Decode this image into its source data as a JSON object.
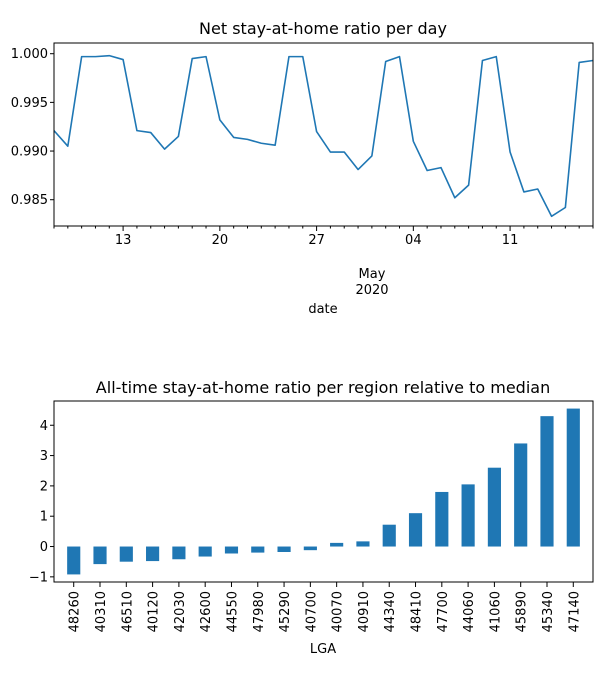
{
  "chart_data": [
    {
      "type": "line",
      "title": "Net stay-at-home ratio per day",
      "xlabel": "date",
      "ylabel": "",
      "x_major_ticks": [
        "13",
        "20",
        "27",
        "04",
        "11"
      ],
      "x_month_label": "May",
      "x_year_label": "2020",
      "y_ticks": [
        "0.985",
        "0.990",
        "0.995",
        "1.000"
      ],
      "ylim": [
        0.9823,
        1.0011
      ],
      "xlim": [
        "2020-04-08",
        "2020-05-17"
      ],
      "grid": false,
      "color": "#1f77b4",
      "x": [
        "2020-04-08",
        "2020-04-09",
        "2020-04-10",
        "2020-04-11",
        "2020-04-12",
        "2020-04-13",
        "2020-04-14",
        "2020-04-15",
        "2020-04-16",
        "2020-04-17",
        "2020-04-18",
        "2020-04-19",
        "2020-04-20",
        "2020-04-21",
        "2020-04-22",
        "2020-04-23",
        "2020-04-24",
        "2020-04-25",
        "2020-04-26",
        "2020-04-27",
        "2020-04-28",
        "2020-04-29",
        "2020-04-30",
        "2020-05-01",
        "2020-05-02",
        "2020-05-03",
        "2020-05-04",
        "2020-05-05",
        "2020-05-06",
        "2020-05-07",
        "2020-05-08",
        "2020-05-09",
        "2020-05-10",
        "2020-05-11",
        "2020-05-12",
        "2020-05-13",
        "2020-05-14",
        "2020-05-15",
        "2020-05-16",
        "2020-05-17"
      ],
      "values": [
        0.9921,
        0.9905,
        0.9997,
        0.9997,
        0.9998,
        0.9994,
        0.9921,
        0.9919,
        0.9902,
        0.9915,
        0.9995,
        0.9997,
        0.9932,
        0.9914,
        0.9912,
        0.9908,
        0.9906,
        0.9997,
        0.9997,
        0.992,
        0.9899,
        0.9899,
        0.9881,
        0.9895,
        0.9992,
        0.9997,
        0.991,
        0.988,
        0.9883,
        0.9852,
        0.9865,
        0.9993,
        0.9997,
        0.9899,
        0.9858,
        0.9861,
        0.9833,
        0.9842,
        0.9991,
        0.9993
      ]
    },
    {
      "type": "bar",
      "title": "All-time stay-at-home ratio per region relative to median",
      "xlabel": "LGA",
      "ylabel": "",
      "categories": [
        "48260",
        "40310",
        "46510",
        "40120",
        "42030",
        "42600",
        "44550",
        "47980",
        "45290",
        "40700",
        "40070",
        "40910",
        "44340",
        "48410",
        "47700",
        "44060",
        "41060",
        "45890",
        "45340",
        "47140"
      ],
      "values": [
        -0.92,
        -0.58,
        -0.5,
        -0.48,
        -0.42,
        -0.33,
        -0.23,
        -0.2,
        -0.18,
        -0.12,
        0.12,
        0.17,
        0.72,
        1.1,
        1.8,
        2.05,
        2.6,
        3.4,
        4.3,
        4.55
      ],
      "y_ticks": [
        "-1",
        "0",
        "1",
        "2",
        "3",
        "4"
      ],
      "ylim": [
        -1.17,
        4.8
      ],
      "grid": false,
      "color": "#1f77b4"
    }
  ]
}
